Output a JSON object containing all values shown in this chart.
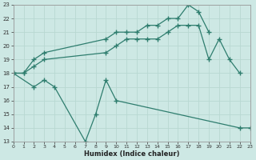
{
  "title": "",
  "xlabel": "Humidex (Indice chaleur)",
  "bg_color": "#cde8e4",
  "line_color": "#2e7d6e",
  "grid_color": "#b8d8d2",
  "xmin": 0,
  "xmax": 23,
  "ymin": 13,
  "ymax": 23,
  "series": [
    {
      "x": [
        0,
        1,
        2,
        3,
        9,
        10,
        11,
        12,
        13,
        14,
        15,
        16,
        17,
        18,
        19
      ],
      "y": [
        18.0,
        18.0,
        19.0,
        19.5,
        20.5,
        21.0,
        21.0,
        21.0,
        21.5,
        21.5,
        22.0,
        22.0,
        23.0,
        22.5,
        21.0
      ]
    },
    {
      "x": [
        0,
        1,
        2,
        3,
        9,
        10,
        11,
        12,
        13,
        14,
        15,
        16,
        17,
        18,
        19,
        20,
        21,
        22
      ],
      "y": [
        18.0,
        18.0,
        18.5,
        19.0,
        19.5,
        20.0,
        20.5,
        20.5,
        20.5,
        20.5,
        21.0,
        21.5,
        21.5,
        21.5,
        19.0,
        20.5,
        19.0,
        18.0
      ]
    },
    {
      "x": [
        0,
        2,
        3,
        4,
        7,
        8,
        9,
        10,
        22,
        23
      ],
      "y": [
        18.0,
        17.0,
        17.5,
        17.0,
        13.0,
        15.0,
        17.5,
        16.0,
        14.0,
        14.0
      ]
    }
  ]
}
